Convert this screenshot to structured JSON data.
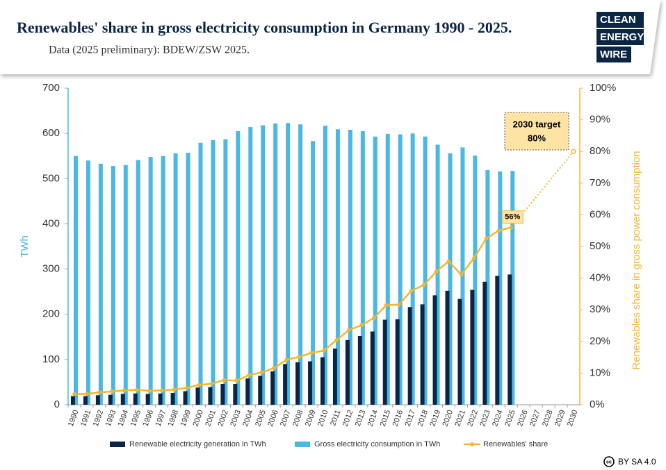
{
  "chart_data": {
    "type": "bar-line",
    "title": "Renewables' share in gross electricity consumption in Germany 1990 - 2025.",
    "subtitle": "Data (2025 preliminary): BDEW/ZSW 2025.",
    "logo": [
      "CLEAN",
      "ENERGY",
      "WIRE"
    ],
    "license": "BY SA 4.0",
    "ylabel": "TWh",
    "y2label": "Renewables share in gross power consumption",
    "categories": [
      "1990",
      "1991",
      "1992",
      "1993",
      "1994",
      "1995",
      "1996",
      "1997",
      "1998",
      "1999",
      "2000",
      "2001",
      "2002",
      "2003",
      "2004",
      "2005",
      "2006",
      "2007",
      "2008",
      "2009",
      "2010",
      "2011",
      "2012",
      "2013",
      "2014",
      "2015",
      "2016",
      "2017",
      "2018",
      "2019",
      "2020",
      "2021",
      "2022",
      "2023",
      "2024",
      "2025",
      "2026",
      "2027",
      "2028",
      "2029",
      "2030"
    ],
    "series": [
      {
        "name": "Renewable electricity generation in TWh",
        "color": "#0b2545",
        "kind": "bar",
        "values": [
          19,
          19,
          21,
          22,
          24,
          25,
          24,
          25,
          26,
          30,
          38,
          39,
          46,
          46,
          58,
          64,
          74,
          90,
          94,
          96,
          105,
          124,
          143,
          152,
          162,
          188,
          189,
          216,
          222,
          242,
          252,
          234,
          254,
          272,
          285,
          288,
          null,
          null,
          null,
          null,
          null
        ]
      },
      {
        "name": "Gross electricity consumption in TWh",
        "color": "#4bb8e4",
        "kind": "bar",
        "values": [
          550,
          540,
          533,
          528,
          530,
          541,
          548,
          550,
          556,
          557,
          579,
          585,
          587,
          605,
          614,
          618,
          622,
          623,
          620,
          583,
          617,
          609,
          608,
          605,
          593,
          599,
          598,
          600,
          593,
          575,
          556,
          569,
          551,
          519,
          516,
          517,
          null,
          null,
          null,
          null,
          null
        ]
      },
      {
        "name": "Renewables' share",
        "color": "#f2b631",
        "kind": "line",
        "axis": "y2",
        "values": [
          3.4,
          3.4,
          3.9,
          4.2,
          4.5,
          4.7,
          4.4,
          4.5,
          4.8,
          5.3,
          6.3,
          6.6,
          7.8,
          7.6,
          9.4,
          10.2,
          11.6,
          14.2,
          15.1,
          16.4,
          17.1,
          20.4,
          23.6,
          25.1,
          27.4,
          31.5,
          31.6,
          36.0,
          37.8,
          42.1,
          45.3,
          41.1,
          46.2,
          52.5,
          55.0,
          56,
          null,
          null,
          null,
          null,
          null
        ],
        "value_labels": [
          null,
          null,
          null,
          null,
          null,
          null,
          null,
          null,
          null,
          null,
          null,
          null,
          null,
          null,
          null,
          null,
          null,
          null,
          null,
          null,
          null,
          null,
          null,
          null,
          null,
          null,
          null,
          null,
          null,
          null,
          null,
          null,
          null,
          null,
          null,
          "56%",
          null,
          null,
          null,
          null,
          null
        ]
      }
    ],
    "target": {
      "label": "2030 target",
      "category": "2030",
      "value": 80,
      "value_label": "80%"
    },
    "ylim": [
      0,
      700
    ],
    "yticks": [
      0,
      100,
      200,
      300,
      400,
      500,
      600,
      700
    ],
    "y2lim": [
      0,
      100
    ],
    "y2ticks": [
      {
        "value": 0,
        "label": "0%"
      },
      {
        "value": 10,
        "label": "10%"
      },
      {
        "value": 20,
        "label": "20%"
      },
      {
        "value": 30,
        "label": "30%"
      },
      {
        "value": 40,
        "label": "40%"
      },
      {
        "value": 50,
        "label": "50%"
      },
      {
        "value": 60,
        "label": "60%"
      },
      {
        "value": 70,
        "label": "70%"
      },
      {
        "value": 80,
        "label": "80%"
      },
      {
        "value": 90,
        "label": "90%"
      },
      {
        "value": 100,
        "label": "100%"
      }
    ],
    "legend": "bottom"
  }
}
